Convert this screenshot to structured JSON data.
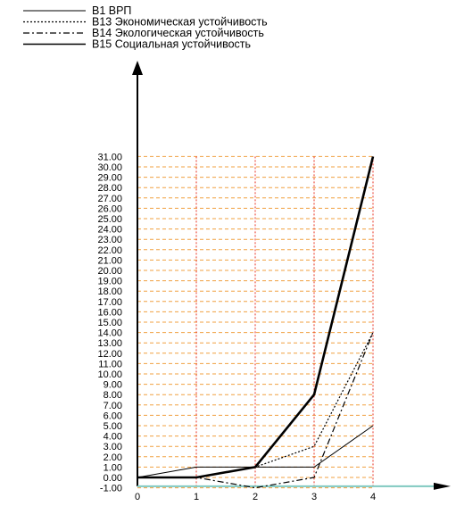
{
  "chart_data": {
    "type": "line",
    "title": "",
    "xlabel": "",
    "ylabel": "",
    "x": [
      0,
      1,
      2,
      3,
      4
    ],
    "x_ticks": [
      "0",
      "1",
      "2",
      "3",
      "4"
    ],
    "ylim": [
      -1,
      31
    ],
    "y_ticks": [
      "-1.00",
      "0.00",
      "1.00",
      "2.00",
      "3.00",
      "4.00",
      "5.00",
      "6.00",
      "7.00",
      "8.00",
      "9.00",
      "10.00",
      "11.00",
      "12.00",
      "13.00",
      "14.00",
      "15.00",
      "16.00",
      "17.00",
      "18.00",
      "19.00",
      "20.00",
      "21.00",
      "22.00",
      "23.00",
      "24.00",
      "25.00",
      "26.00",
      "27.00",
      "28.00",
      "29.00",
      "30.00",
      "31.00"
    ],
    "grid": true,
    "legend_position": "top-left",
    "series": [
      {
        "name": "В1 ВРП",
        "values": [
          0,
          1,
          1,
          1,
          5
        ],
        "style": "thin-solid",
        "color": "#000000"
      },
      {
        "name": "В13 Экономическая устойчивость",
        "values": [
          0,
          0,
          1,
          3,
          14
        ],
        "style": "dotted",
        "color": "#000000"
      },
      {
        "name": "В14 Экологическая устойчивость",
        "values": [
          0,
          0,
          -1,
          0,
          14
        ],
        "style": "dash-dot",
        "color": "#000000"
      },
      {
        "name": "В15 Социальная устойчивость",
        "values": [
          0,
          0,
          1,
          8,
          31
        ],
        "style": "thick-solid",
        "color": "#000000"
      }
    ],
    "colors": {
      "horizontal_grid": "#f0a040",
      "vertical_grid": "#e83020",
      "x_axis_line": "#80c8c0",
      "axis": "#000000"
    }
  }
}
